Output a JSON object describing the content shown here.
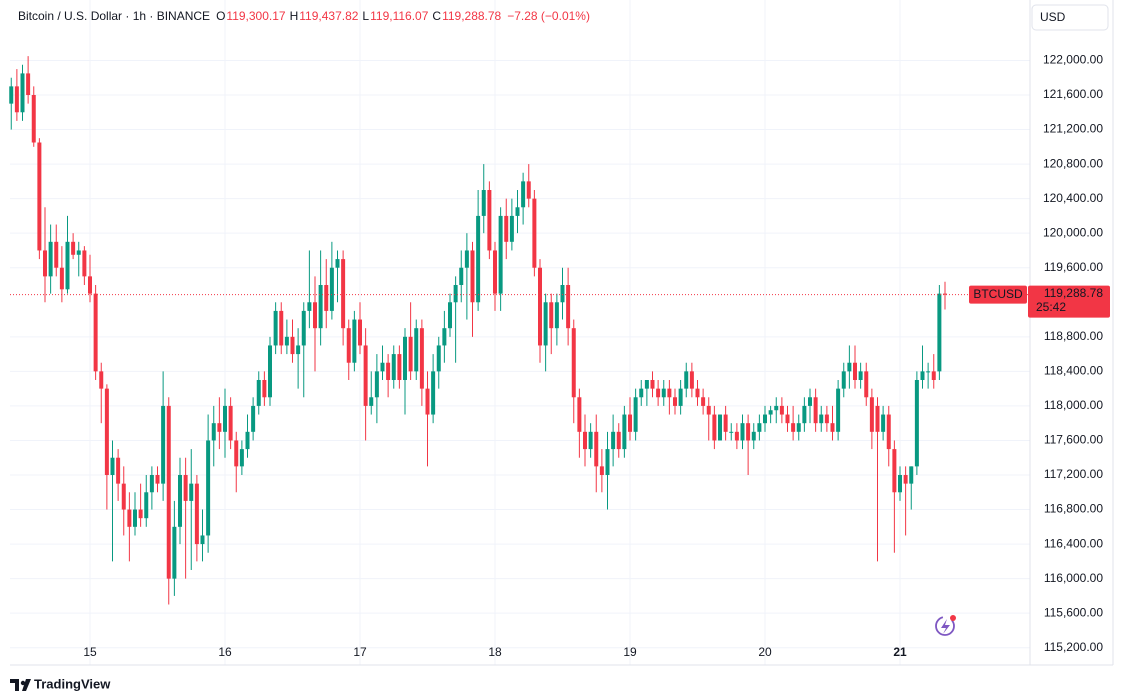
{
  "header": {
    "symbol": "Bitcoin / U.S. Dollar · 1h · BINANCE",
    "ohlc": [
      {
        "key": "O",
        "value": "119,300.17"
      },
      {
        "key": "H",
        "value": "119,437.82"
      },
      {
        "key": "L",
        "value": "119,116.07"
      },
      {
        "key": "C",
        "value": "119,288.78"
      }
    ],
    "change": "−7.28 (−0.01%)",
    "currency": "USD"
  },
  "brand": "TradingView",
  "chart_data": {
    "type": "candlestick",
    "series": [
      {
        "name": "BTCUSD",
        "up_color": "#089981",
        "down_color": "#f23645",
        "open": [
          121500,
          121700,
          121400,
          121850,
          121600,
          121050,
          119800,
          119500,
          119900,
          119600,
          119350,
          119900,
          119750,
          119800,
          119500,
          119300,
          118400,
          118200,
          117200,
          117400,
          117100,
          116800,
          116600,
          116800,
          116700,
          117000,
          117200,
          117100,
          118000,
          116000,
          116600,
          117200,
          116900,
          117100,
          116400,
          116500,
          117600,
          117800,
          117700,
          118000,
          117600,
          117300,
          117500,
          117700,
          118000,
          118300,
          118100,
          118700,
          119100,
          118700,
          118800,
          118600,
          118700,
          119100,
          119200,
          118900,
          119400,
          119100,
          119600,
          119700,
          118900,
          118500,
          119000,
          118700,
          118000,
          118100,
          118400,
          118500,
          118300,
          118600,
          118300,
          118800,
          118400,
          118900,
          118200,
          117900,
          118400,
          118700,
          118900,
          119200,
          119400,
          119600,
          119800,
          119200,
          120200,
          120500,
          119800,
          119300,
          120200,
          119900,
          120200,
          120300,
          120600,
          120400,
          119600,
          118700,
          119200,
          118900,
          119200,
          119400,
          118900,
          118100,
          117700,
          117500,
          117700,
          117300,
          117200,
          117500,
          117700,
          117500,
          117900,
          117700,
          118100,
          118200,
          118300,
          118200,
          118100,
          118200,
          118100,
          118000,
          118200,
          118400,
          118200,
          118100,
          118000,
          117900,
          117600,
          117900,
          117700,
          117700,
          117600,
          117800,
          117600,
          117700,
          117800,
          117900,
          117950,
          118000,
          117900,
          117800,
          117700,
          117800,
          118000,
          118100,
          117800,
          117900,
          117800,
          117700,
          118200,
          118400,
          118500,
          118300,
          118400,
          118100,
          118000,
          117700,
          117900,
          117500,
          117000,
          117200,
          117100,
          117300,
          118300,
          118400,
          118400,
          118400,
          119300.17
        ],
        "high": [
          121800,
          121900,
          121950,
          122050,
          121700,
          121100,
          120300,
          120100,
          120100,
          119850,
          120200,
          120000,
          119900,
          119850,
          119750,
          119400,
          118500,
          118250,
          117600,
          117500,
          117300,
          117000,
          117000,
          117100,
          117200,
          117300,
          117300,
          118400,
          118100,
          116900,
          117400,
          117400,
          117500,
          117200,
          116800,
          117900,
          118000,
          118100,
          118200,
          118100,
          117700,
          117600,
          117900,
          118100,
          118400,
          118400,
          118800,
          119200,
          119200,
          119000,
          119000,
          118900,
          119200,
          119800,
          119500,
          119800,
          119700,
          119900,
          119800,
          119800,
          119000,
          119100,
          119200,
          118900,
          118400,
          118600,
          118700,
          118600,
          118700,
          118700,
          118900,
          119200,
          119000,
          119000,
          118400,
          118600,
          118800,
          119100,
          119300,
          119500,
          119800,
          120000,
          119900,
          120500,
          120800,
          120600,
          119900,
          120300,
          120400,
          120400,
          120500,
          120700,
          120800,
          120500,
          119700,
          119300,
          119300,
          119300,
          119600,
          119600,
          119000,
          118200,
          117900,
          117800,
          117900,
          117500,
          117700,
          117900,
          117800,
          118000,
          118100,
          118200,
          118300,
          118300,
          118400,
          118300,
          118300,
          118300,
          118200,
          118300,
          118500,
          118500,
          118300,
          118200,
          118100,
          118000,
          117900,
          118000,
          117800,
          117800,
          117900,
          117900,
          117800,
          117900,
          118000,
          118000,
          118100,
          118100,
          118000,
          118000,
          117900,
          118100,
          118200,
          118200,
          118000,
          118000,
          118000,
          118300,
          118500,
          118700,
          118700,
          118500,
          118500,
          118200,
          118100,
          118000,
          118000,
          117600,
          117300,
          117300,
          117300,
          118400,
          118700,
          118500,
          118600,
          119400,
          119437.82
        ],
        "low": [
          121200,
          121300,
          121300,
          121500,
          121000,
          119700,
          119200,
          119300,
          119500,
          119200,
          119300,
          119700,
          119500,
          119400,
          119200,
          118300,
          117800,
          116800,
          116200,
          116900,
          116500,
          116200,
          116500,
          116600,
          116600,
          116800,
          117000,
          116900,
          115700,
          115800,
          116400,
          116000,
          116100,
          116200,
          116200,
          116300,
          117300,
          117500,
          117400,
          117500,
          117000,
          117200,
          117400,
          117600,
          117900,
          118000,
          118000,
          118600,
          118600,
          118600,
          118500,
          118200,
          118100,
          118900,
          118400,
          118700,
          118900,
          119000,
          119200,
          118700,
          118300,
          118400,
          118600,
          117600,
          117900,
          117800,
          118300,
          118100,
          118200,
          118200,
          117900,
          118300,
          118300,
          118000,
          117300,
          117800,
          118200,
          118500,
          118800,
          118500,
          119200,
          119000,
          118800,
          119100,
          120000,
          119700,
          119100,
          119100,
          119700,
          119800,
          120000,
          120100,
          120300,
          119500,
          118500,
          118400,
          118600,
          118700,
          119000,
          118700,
          117800,
          117400,
          117300,
          117400,
          117000,
          117000,
          116800,
          117300,
          117400,
          117400,
          117600,
          117600,
          118000,
          118000,
          118100,
          118000,
          118000,
          117900,
          117900,
          117900,
          118100,
          118100,
          118000,
          117900,
          117600,
          117500,
          117600,
          117600,
          117600,
          117500,
          117500,
          117200,
          117500,
          117600,
          117700,
          117800,
          117800,
          117800,
          117700,
          117600,
          117600,
          117700,
          117800,
          117700,
          117700,
          117700,
          117600,
          117600,
          118100,
          118200,
          118200,
          118200,
          118000,
          117500,
          116200,
          117600,
          117300,
          116300,
          116900,
          116500,
          116800,
          117200,
          118200,
          118200,
          118200,
          118300,
          119116.07
        ],
        "close": [
          121700,
          121400,
          121850,
          121600,
          121050,
          119800,
          119500,
          119900,
          119600,
          119350,
          119900,
          119750,
          119800,
          119500,
          119300,
          118400,
          118200,
          117200,
          117400,
          117100,
          116800,
          116600,
          116800,
          116700,
          117000,
          117200,
          117100,
          118000,
          116000,
          116600,
          117200,
          116900,
          117100,
          116400,
          116500,
          117600,
          117800,
          117700,
          118000,
          117600,
          117300,
          117500,
          117700,
          118000,
          118300,
          118100,
          118700,
          119100,
          118700,
          118800,
          118600,
          118700,
          119100,
          119200,
          118900,
          119400,
          119100,
          119600,
          119700,
          118900,
          118500,
          119000,
          118700,
          118000,
          118100,
          118400,
          118500,
          118300,
          118600,
          118300,
          118800,
          118400,
          118900,
          118200,
          117900,
          118400,
          118700,
          118900,
          119200,
          119400,
          119600,
          119800,
          119200,
          120200,
          120500,
          119800,
          119300,
          120200,
          119900,
          120200,
          120300,
          120600,
          120400,
          119600,
          118700,
          119200,
          118900,
          119200,
          119400,
          118900,
          118100,
          117700,
          117500,
          117700,
          117300,
          117200,
          117500,
          117700,
          117500,
          117900,
          117700,
          118100,
          118200,
          118300,
          118200,
          118100,
          118200,
          118100,
          118000,
          118200,
          118400,
          118200,
          118100,
          118000,
          117900,
          117600,
          117900,
          117700,
          117700,
          117600,
          117800,
          117600,
          117700,
          117800,
          117900,
          117950,
          118000,
          117900,
          117800,
          117700,
          117800,
          118000,
          118100,
          117800,
          117900,
          117800,
          117700,
          118200,
          118400,
          118500,
          118300,
          118400,
          118100,
          117700,
          117700,
          117900,
          117500,
          117000,
          117200,
          117100,
          117300,
          118300,
          118400,
          118400,
          118300,
          119300,
          119288.78
        ]
      }
    ],
    "last_price_label": "119,288.78",
    "countdown": "25:42",
    "ylim": [
      115000,
      122700
    ],
    "yticks": [
      {
        "value": 115200,
        "label": "115,200.00"
      },
      {
        "value": 115600,
        "label": "115,600.00"
      },
      {
        "value": 116000,
        "label": "116,000.00"
      },
      {
        "value": 116400,
        "label": "116,400.00"
      },
      {
        "value": 116800,
        "label": "116,800.00"
      },
      {
        "value": 117200,
        "label": "117,200.00"
      },
      {
        "value": 117600,
        "label": "117,600.00"
      },
      {
        "value": 118000,
        "label": "118,000.00"
      },
      {
        "value": 118400,
        "label": "118,400.00"
      },
      {
        "value": 118800,
        "label": "118,800.00"
      },
      {
        "value": 119600,
        "label": "119,600.00"
      },
      {
        "value": 120000,
        "label": "120,000.00"
      },
      {
        "value": 120400,
        "label": "120,400.00"
      },
      {
        "value": 120800,
        "label": "120,800.00"
      },
      {
        "value": 121200,
        "label": "121,200.00"
      },
      {
        "value": 121600,
        "label": "121,600.00"
      },
      {
        "value": 122000,
        "label": "122,000.00"
      }
    ],
    "xticks": [
      {
        "value": 14,
        "label": "15"
      },
      {
        "value": 38,
        "label": "16"
      },
      {
        "value": 62,
        "label": "17"
      },
      {
        "value": 86,
        "label": "18"
      },
      {
        "value": 110,
        "label": "19"
      },
      {
        "value": 134,
        "label": "20"
      },
      {
        "value": 158,
        "label": "21"
      }
    ],
    "grid": true
  }
}
